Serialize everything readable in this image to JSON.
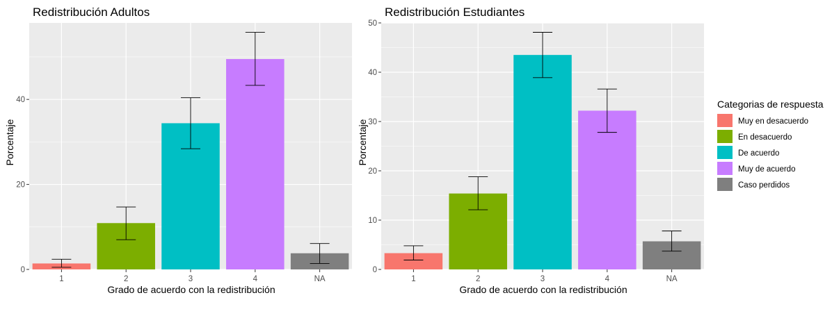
{
  "chart_data": [
    {
      "type": "bar",
      "title": "Redistribución Adultos",
      "xlabel": "Grado de acuerdo con la redistribución",
      "ylabel": "Porcentaje",
      "categories": [
        "1",
        "2",
        "3",
        "4",
        "NA"
      ],
      "values": [
        1.4,
        10.9,
        34.4,
        49.5,
        3.8
      ],
      "error_low": [
        0.5,
        7.0,
        28.4,
        43.3,
        1.4
      ],
      "error_high": [
        2.4,
        14.7,
        40.4,
        55.8,
        6.1
      ],
      "ylim": [
        0,
        58
      ],
      "yticks": [
        0,
        20,
        40
      ],
      "colors": [
        "#F8766D",
        "#7CAE00",
        "#00BFC4",
        "#C77CFF",
        "#7F7F7F"
      ],
      "grid": true
    },
    {
      "type": "bar",
      "title": "Redistribución Estudiantes",
      "xlabel": "Grado de acuerdo con la redistribución",
      "ylabel": "Porcentaje",
      "categories": [
        "1",
        "2",
        "3",
        "4",
        "NA"
      ],
      "values": [
        3.3,
        15.4,
        43.5,
        32.2,
        5.7
      ],
      "error_low": [
        1.9,
        12.1,
        38.9,
        27.8,
        3.7
      ],
      "error_high": [
        4.8,
        18.8,
        48.1,
        36.6,
        7.8
      ],
      "ylim": [
        0,
        50
      ],
      "yticks": [
        0,
        10,
        20,
        30,
        40,
        50
      ],
      "colors": [
        "#F8766D",
        "#7CAE00",
        "#00BFC4",
        "#C77CFF",
        "#7F7F7F"
      ],
      "grid": true
    }
  ],
  "legend": {
    "title": "Categorias de respuesta",
    "placement": "right",
    "items": [
      {
        "label": "Muy en desacuerdo",
        "color": "#F8766D"
      },
      {
        "label": "En desacuerdo",
        "color": "#7CAE00"
      },
      {
        "label": "De acuerdo",
        "color": "#00BFC4"
      },
      {
        "label": "Muy de acuerdo",
        "color": "#C77CFF"
      },
      {
        "label": "Caso perdidos",
        "color": "#7F7F7F"
      }
    ]
  }
}
